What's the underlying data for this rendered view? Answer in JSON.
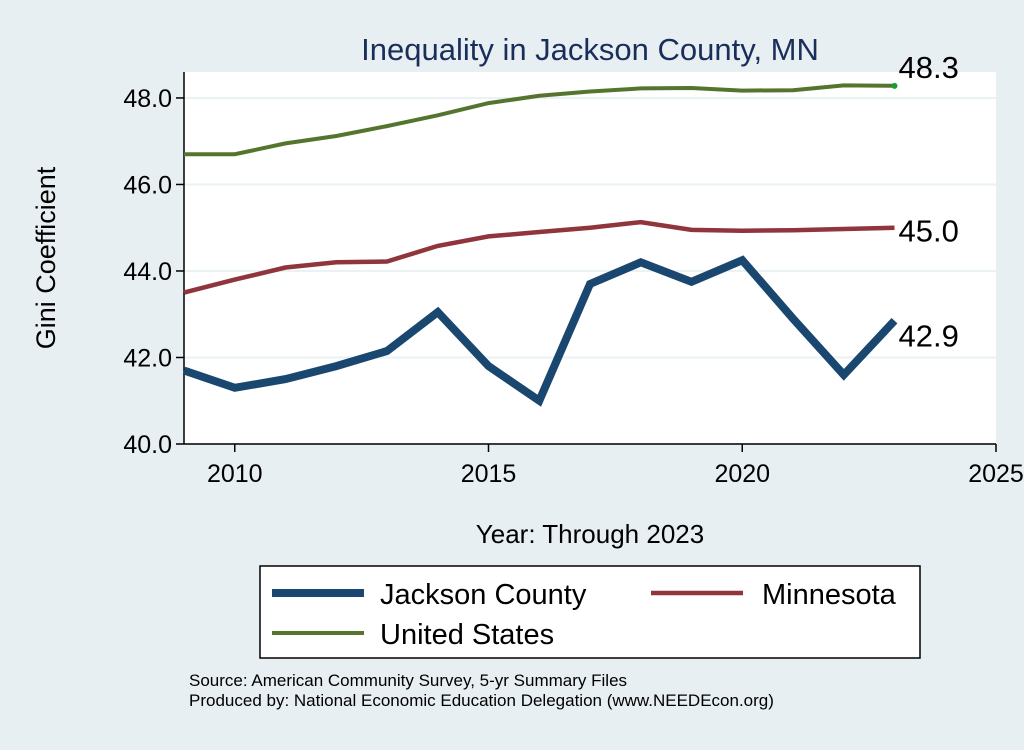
{
  "chart_data": {
    "type": "line",
    "title": "Inequality in Jackson County, MN",
    "xlabel": "Year: Through 2023",
    "ylabel": "Gini Coefficient",
    "xlim": [
      2009,
      2025
    ],
    "ylim": [
      40,
      48.6
    ],
    "x_ticks": [
      "2010",
      "2015",
      "2020",
      "2025"
    ],
    "y_ticks": [
      "40.0",
      "42.0",
      "44.0",
      "46.0",
      "48.0"
    ],
    "grid": true,
    "legend_position": "bottom",
    "x": [
      2009,
      2010,
      2011,
      2012,
      2013,
      2014,
      2015,
      2016,
      2017,
      2018,
      2019,
      2020,
      2021,
      2022,
      2023
    ],
    "series": [
      {
        "name": "Jackson County",
        "color": "#1a476f",
        "values": [
          41.7,
          41.3,
          41.5,
          41.8,
          42.15,
          43.05,
          41.8,
          41.0,
          43.7,
          44.2,
          43.75,
          44.25,
          42.9,
          41.6,
          42.85
        ],
        "end_label": "42.9"
      },
      {
        "name": "Minnesota",
        "color": "#90353b",
        "values": [
          43.5,
          43.8,
          44.08,
          44.2,
          44.22,
          44.58,
          44.8,
          44.9,
          45.0,
          45.13,
          44.95,
          44.93,
          44.94,
          44.97,
          45.0
        ],
        "end_label": "45.0"
      },
      {
        "name": "United States",
        "color": "#55752f",
        "values": [
          46.7,
          46.7,
          46.95,
          47.12,
          47.35,
          47.6,
          47.88,
          48.05,
          48.15,
          48.22,
          48.23,
          48.17,
          48.18,
          48.29,
          48.28
        ],
        "end_label": "48.3"
      }
    ],
    "source_lines": [
      "Source: American Community Survey, 5-yr Summary Files",
      "Produced by: National Economic Education Delegation (www.NEEDEcon.org)"
    ]
  }
}
